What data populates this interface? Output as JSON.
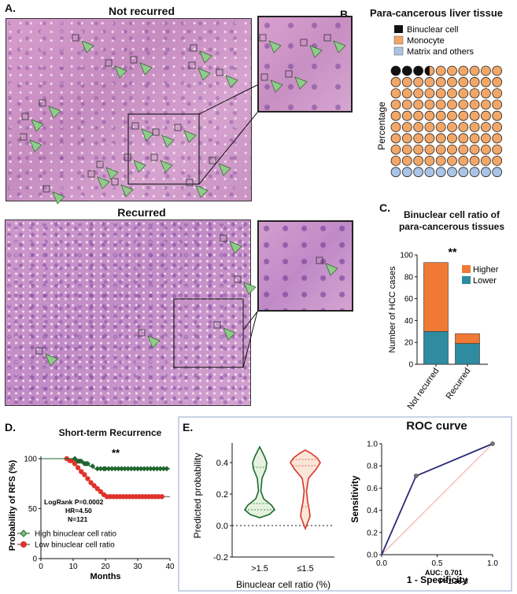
{
  "panels": {
    "a": {
      "label": "A.",
      "not_recurred_title": "Not recurred",
      "recurred_title": "Recurred"
    },
    "b": {
      "label": "B.",
      "title": "Para-cancerous liver tissue",
      "ylabel": "Percentage",
      "legend": [
        "Binuclear cell",
        "Monocyte",
        "Matrix and others"
      ]
    },
    "c": {
      "label": "C.",
      "title_line1": "Binuclear cell ratio of",
      "title_line2": "para-cancerous tissues",
      "significance": "**"
    },
    "d": {
      "label": "D.",
      "title": "Short-term Recurrence",
      "significance": "**",
      "stats": [
        "LogRank P=0.0002",
        "HR=4.50",
        "N=121"
      ]
    },
    "e": {
      "label": "E.",
      "roc_title": "ROC curve",
      "auc_text": "AUC: 0.701",
      "p_text": "P=1.3e-3"
    }
  },
  "colors": {
    "binuclear": "#111111",
    "monocyte": "#f2a768",
    "matrix": "#a9c4e4",
    "higher": "#f07a35",
    "lower": "#2f8ba0",
    "km_high": "#1d6b2f",
    "km_low": "#e0322b",
    "violin_high": "#1d6b2f",
    "violin_low": "#d9332b",
    "roc_line": "#2a2a7a",
    "roc_ref": "#f2a4a4",
    "arrow": "#8fcc8a"
  },
  "chart_data": [
    {
      "id": "waffle",
      "type": "waffle",
      "grid_rows": 10,
      "grid_cols": 10,
      "categories": [
        "Binuclear cell",
        "Monocyte",
        "Matrix and others"
      ],
      "values": [
        3.5,
        86.5,
        10
      ],
      "ylabel": "Percentage"
    },
    {
      "id": "stacked-bar",
      "type": "bar",
      "stacked": true,
      "categories": [
        "Not recurred",
        "Recurred"
      ],
      "series": [
        {
          "name": "Lower",
          "values": [
            30,
            19
          ]
        },
        {
          "name": "Higher",
          "values": [
            63,
            9
          ]
        }
      ],
      "ylabel": "Number of HCC cases",
      "ylim": [
        0,
        100
      ],
      "yticks": [
        0,
        20,
        40,
        60,
        80,
        100
      ],
      "legend": "top-right"
    },
    {
      "id": "km",
      "type": "line",
      "step": true,
      "title": "Short-term Recurrence",
      "xlabel": "Months",
      "ylabel": "Probability of RFS (%)",
      "xlim": [
        0,
        40
      ],
      "ylim": [
        0,
        100
      ],
      "xticks": [
        0,
        10,
        20,
        30,
        40
      ],
      "yticks": [
        0,
        50,
        100
      ],
      "series": [
        {
          "name": "High binuclear cell ratio",
          "steps": [
            [
              0,
              100
            ],
            [
              11,
              100
            ],
            [
              11,
              97.5
            ],
            [
              13,
              97.5
            ],
            [
              13,
              95
            ],
            [
              15,
              95
            ],
            [
              15,
              92.5
            ],
            [
              16.5,
              92.5
            ],
            [
              16.5,
              90
            ],
            [
              40,
              90
            ]
          ],
          "censor_x": [
            10.5,
            11.5,
            12,
            12.5,
            13.5,
            14,
            14.5,
            16,
            17.5,
            18.5,
            19.5,
            20,
            21,
            22,
            23,
            24,
            25,
            26,
            27,
            28,
            29,
            30,
            31,
            32,
            33,
            34,
            35,
            36,
            37,
            38,
            39
          ]
        },
        {
          "name": "Low binuclear cell ratio",
          "steps": [
            [
              0,
              100
            ],
            [
              9,
              100
            ],
            [
              9,
              98
            ],
            [
              10,
              98
            ],
            [
              10,
              95
            ],
            [
              11,
              95
            ],
            [
              11,
              91
            ],
            [
              12,
              91
            ],
            [
              12,
              87
            ],
            [
              13,
              87
            ],
            [
              13,
              84
            ],
            [
              14,
              84
            ],
            [
              14,
              80
            ],
            [
              15,
              80
            ],
            [
              15,
              76
            ],
            [
              16,
              76
            ],
            [
              16,
              73
            ],
            [
              17,
              73
            ],
            [
              17,
              70
            ],
            [
              18,
              70
            ],
            [
              18,
              67
            ],
            [
              19,
              67
            ],
            [
              19,
              64
            ],
            [
              20,
              64
            ],
            [
              20,
              62
            ],
            [
              40,
              62
            ]
          ],
          "censor_x": [
            8,
            9,
            9.5,
            10.5,
            11.5,
            12.5,
            13.5,
            14.5,
            15.5,
            16.5,
            17.5,
            18.5,
            19.5,
            20.5,
            21.5,
            22.5,
            23.5,
            24.5,
            25.5,
            26.5,
            27.5,
            28.5,
            29.5,
            30.5,
            31.5,
            32.5,
            33.5,
            34.5,
            35.5,
            36.5,
            37.5
          ]
        }
      ]
    },
    {
      "id": "violin",
      "type": "violin",
      "xlabel": "Binuclear cell ratio (%)",
      "ylabel": "Predicted probability",
      "categories": [
        ">1.5",
        "≤1.5"
      ],
      "ylim": [
        -0.2,
        0.5
      ],
      "yticks": [
        -0.2,
        0.0,
        0.2,
        0.4
      ],
      "series": [
        {
          "name": ">1.5",
          "range": [
            0.05,
            0.5
          ],
          "modes": [
            0.1,
            0.38
          ],
          "quartiles": [
            0.1,
            0.14,
            0.37
          ]
        },
        {
          "name": "≤1.5",
          "range": [
            -0.02,
            0.48
          ],
          "modes": [
            0.4,
            0.08
          ],
          "quartiles": [
            0.12,
            0.38,
            0.42
          ]
        }
      ]
    },
    {
      "id": "roc",
      "type": "line",
      "title": "ROC curve",
      "xlabel": "1 - Specificity",
      "ylabel": "Sensitivity",
      "xlim": [
        0,
        1
      ],
      "ylim": [
        0,
        1
      ],
      "xticks": [
        0.0,
        0.5,
        1.0
      ],
      "yticks": [
        0.0,
        0.2,
        0.4,
        0.6,
        0.8,
        1.0
      ],
      "series": [
        {
          "name": "ROC",
          "x": [
            0,
            0.31,
            1.0
          ],
          "y": [
            0,
            0.71,
            1.0
          ]
        }
      ],
      "annotations": [
        "AUC: 0.701",
        "P=1.3e-3"
      ]
    }
  ]
}
